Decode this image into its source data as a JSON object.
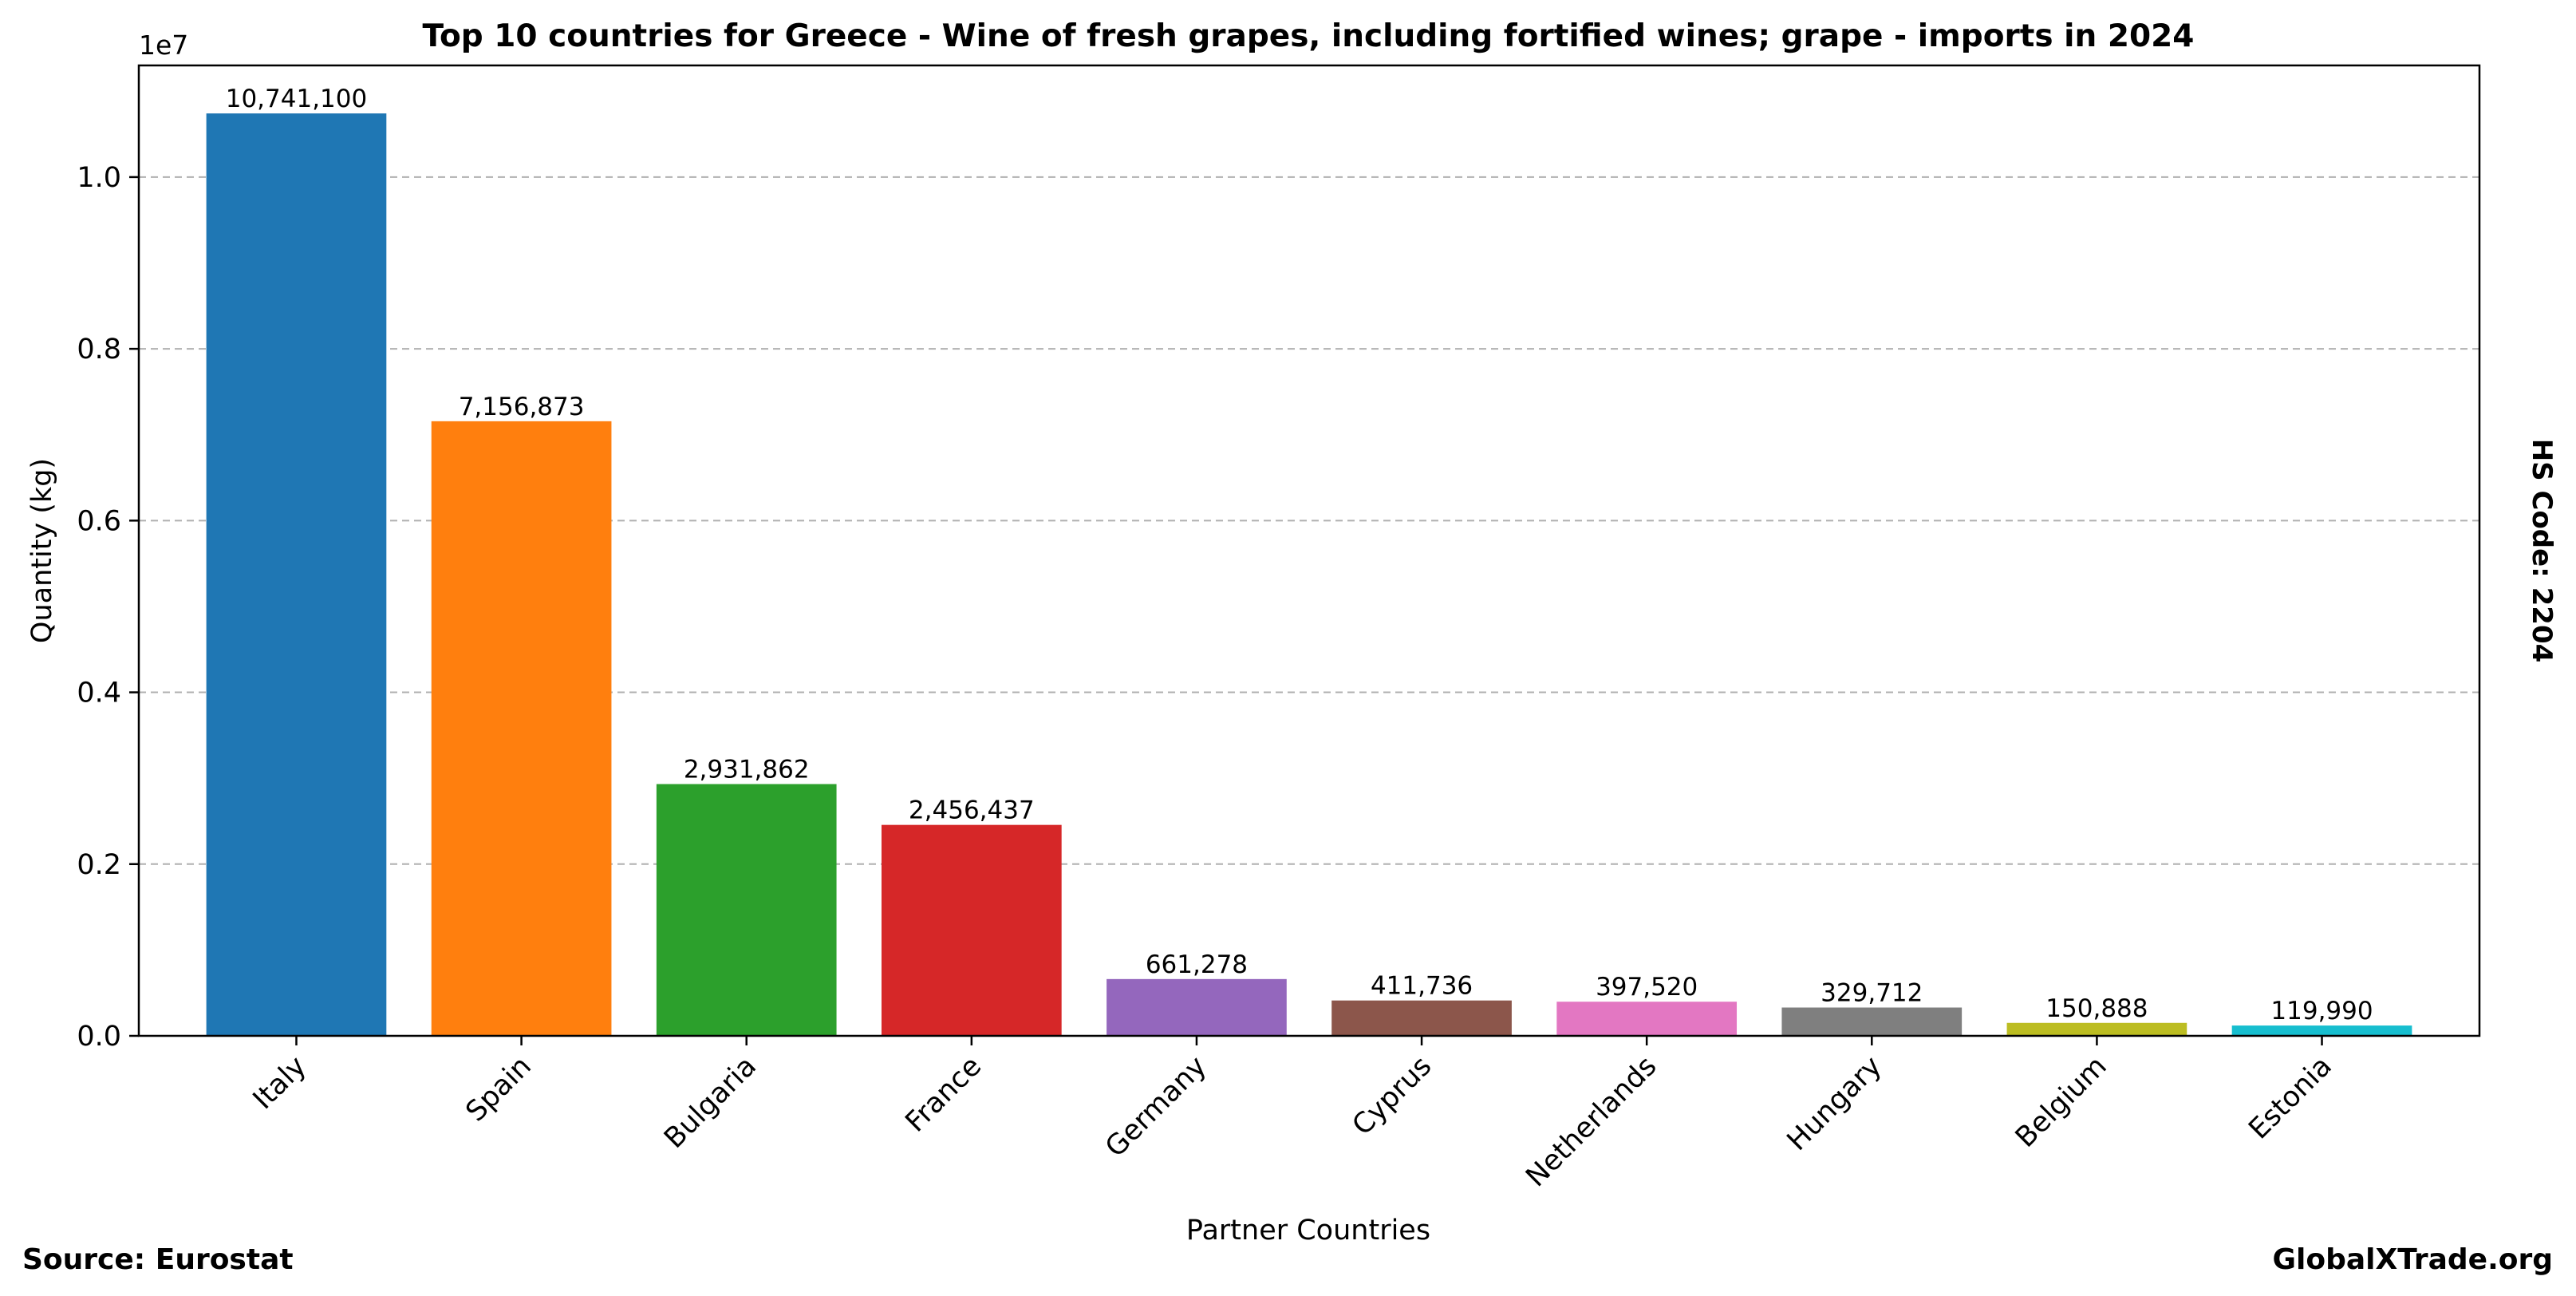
{
  "chart_data": {
    "type": "bar",
    "title": "Top 10 countries for Greece - Wine of fresh grapes, including fortified wines; grape - imports in 2024",
    "xlabel": "Partner Countries",
    "ylabel": "Quantity (kg)",
    "y_offset_label": "1e7",
    "ylim": [
      0,
      11300000
    ],
    "yticks": [
      0,
      2000000,
      4000000,
      6000000,
      8000000,
      10000000
    ],
    "ytick_labels": [
      "0.0",
      "0.2",
      "0.4",
      "0.6",
      "0.8",
      "1.0"
    ],
    "grid": "horizontal dashed",
    "categories": [
      "Italy",
      "Spain",
      "Bulgaria",
      "France",
      "Germany",
      "Cyprus",
      "Netherlands",
      "Hungary",
      "Belgium",
      "Estonia"
    ],
    "values": [
      10741100,
      7156873,
      2931862,
      2456437,
      661278,
      411736,
      397520,
      329712,
      150888,
      119990
    ],
    "value_labels": [
      "10,741,100",
      "7,156,873",
      "2,931,862",
      "2,456,437",
      "661,278",
      "411,736",
      "397,520",
      "329,712",
      "150,888",
      "119,990"
    ],
    "colors": [
      "#1f77b4",
      "#ff7f0e",
      "#2ca02c",
      "#d62728",
      "#9467bd",
      "#8c564b",
      "#e377c2",
      "#7f7f7f",
      "#bcbd22",
      "#17becf"
    ]
  },
  "footer": {
    "source": "Source: Eurostat",
    "brand": "GlobalXTrade.org"
  },
  "side_label": "HS Code: 2204"
}
